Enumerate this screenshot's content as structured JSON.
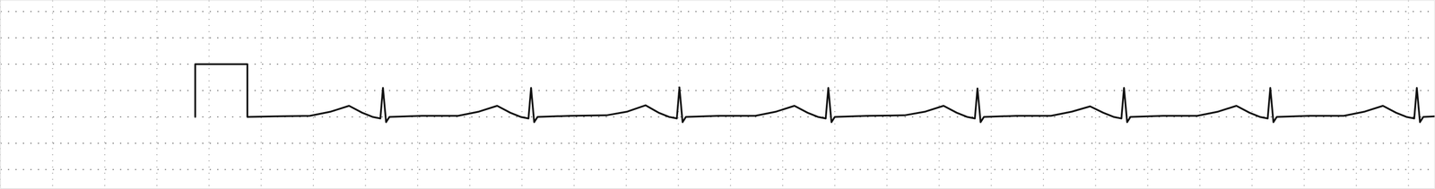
{
  "chart_data": {
    "type": "line",
    "color": "#111111",
    "grid": true,
    "tick_labels": false,
    "xlim": [
      0,
      5.5
    ],
    "ylim": [
      -1.36,
      2.21
    ],
    "xticks": [
      0,
      0.2,
      0.4,
      0.6,
      0.8,
      1,
      1.2,
      1.4,
      1.6,
      1.8,
      2,
      2.2,
      2.4,
      2.6,
      2.8,
      3,
      3.2,
      3.4,
      3.6,
      3.8,
      4,
      4.2,
      4.4,
      4.6,
      4.8,
      5,
      5.2,
      5.4
    ],
    "yticks": [
      -1,
      -0.5,
      0,
      0.5,
      1,
      1.5,
      2
    ],
    "x": [
      0.747,
      0.747,
      0.947,
      0.947,
      1.05,
      1.187,
      1.267,
      1.337,
      1.387,
      1.427,
      1.457,
      1.467,
      1.479,
      1.492,
      1.617,
      1.755,
      1.835,
      1.905,
      1.955,
      1.995,
      2.025,
      2.035,
      2.047,
      2.06,
      2.185,
      2.324,
      2.404,
      2.474,
      2.524,
      2.564,
      2.594,
      2.604,
      2.616,
      2.629,
      2.754,
      2.895,
      2.975,
      3.045,
      3.095,
      3.135,
      3.165,
      3.175,
      3.187,
      3.2,
      3.325,
      3.467,
      3.547,
      3.617,
      3.667,
      3.707,
      3.737,
      3.747,
      3.759,
      3.772,
      3.897,
      4.029,
      4.109,
      4.179,
      4.229,
      4.269,
      4.299,
      4.309,
      4.321,
      4.334,
      4.459,
      4.59,
      4.67,
      4.74,
      4.79,
      4.83,
      4.86,
      4.87,
      4.882,
      4.895,
      5.02,
      5.152,
      5.232,
      5.302,
      5.352,
      5.392,
      5.422,
      5.432,
      5.444,
      5.457,
      5.5
    ],
    "values": [
      0,
      1.0,
      1.0,
      0,
      0.01,
      0.02,
      0.1,
      0.21,
      0.08,
      0,
      -0.03,
      0.55,
      -0.1,
      0,
      0.02,
      0.02,
      0.1,
      0.21,
      0.08,
      0,
      -0.03,
      0.55,
      -0.1,
      0,
      0.02,
      0.03,
      0.1,
      0.22,
      0.08,
      0,
      -0.03,
      0.56,
      -0.1,
      0,
      0.02,
      0.02,
      0.1,
      0.21,
      0.08,
      0,
      -0.03,
      0.55,
      -0.1,
      0,
      0.02,
      0.03,
      0.1,
      0.21,
      0.08,
      0,
      -0.03,
      0.54,
      -0.1,
      0,
      0.02,
      0.02,
      0.1,
      0.2,
      0.08,
      0,
      -0.03,
      0.55,
      -0.1,
      0,
      0.02,
      0.02,
      0.1,
      0.21,
      0.08,
      0,
      -0.03,
      0.55,
      -0.1,
      0,
      0.02,
      0.02,
      0.1,
      0.21,
      0.08,
      0,
      -0.03,
      0.55,
      -0.1,
      0,
      0.01
    ]
  }
}
